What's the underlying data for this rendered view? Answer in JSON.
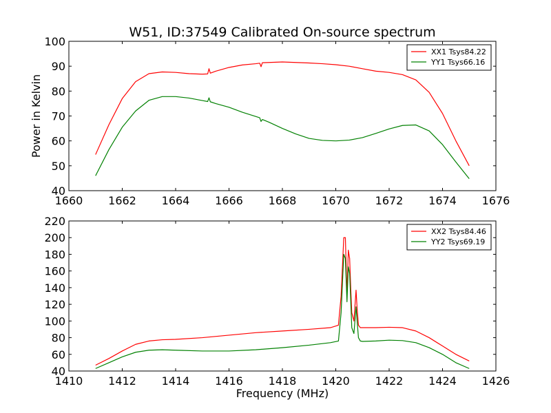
{
  "title": "W51, ID:37549 Calibrated On-source spectrum",
  "chart_data": [
    {
      "type": "line",
      "ylabel": "Power in Kelvin",
      "xlabel": "",
      "xlim": [
        1660,
        1676
      ],
      "ylim": [
        40,
        100
      ],
      "xticks": [
        "1660",
        "1662",
        "1664",
        "1666",
        "1668",
        "1670",
        "1672",
        "1674",
        "1676"
      ],
      "yticks": [
        "40",
        "50",
        "60",
        "70",
        "80",
        "90",
        "100"
      ],
      "legend_position": "top-right",
      "series": [
        {
          "name": "XX1 Tsys84.22",
          "color": "#ff0000",
          "x": [
            1661.0,
            1661.5,
            1662.0,
            1662.5,
            1663.0,
            1663.5,
            1664.0,
            1664.5,
            1665.0,
            1665.2,
            1665.25,
            1665.3,
            1665.5,
            1666.0,
            1666.5,
            1667.0,
            1667.15,
            1667.2,
            1667.25,
            1667.5,
            1668.0,
            1668.5,
            1669.0,
            1669.5,
            1670.0,
            1670.5,
            1671.0,
            1671.5,
            1672.0,
            1672.5,
            1673.0,
            1673.5,
            1674.0,
            1674.5,
            1675.0
          ],
          "y": [
            54.5,
            66.5,
            77.0,
            83.8,
            87.0,
            87.7,
            87.5,
            87.0,
            86.8,
            86.9,
            89.0,
            87.2,
            88.0,
            89.5,
            90.5,
            91.0,
            91.2,
            89.8,
            91.4,
            91.5,
            91.7,
            91.5,
            91.3,
            91.0,
            90.6,
            90.0,
            89.0,
            88.0,
            87.5,
            86.6,
            84.5,
            79.5,
            71.0,
            60.0,
            50.0
          ]
        },
        {
          "name": "YY1 Tsys66.16",
          "color": "#008000",
          "x": [
            1661.0,
            1661.5,
            1662.0,
            1662.5,
            1663.0,
            1663.5,
            1664.0,
            1664.5,
            1665.0,
            1665.2,
            1665.25,
            1665.3,
            1665.5,
            1666.0,
            1666.5,
            1667.0,
            1667.15,
            1667.2,
            1667.25,
            1667.5,
            1668.0,
            1668.5,
            1669.0,
            1669.5,
            1670.0,
            1670.5,
            1671.0,
            1671.5,
            1672.0,
            1672.5,
            1673.0,
            1673.5,
            1674.0,
            1674.5,
            1675.0
          ],
          "y": [
            46.0,
            56.5,
            65.5,
            72.0,
            76.3,
            77.8,
            77.8,
            77.2,
            76.2,
            75.8,
            77.3,
            75.7,
            75.0,
            73.5,
            71.5,
            69.8,
            69.3,
            67.8,
            68.6,
            67.5,
            65.0,
            62.8,
            61.0,
            60.2,
            60.0,
            60.3,
            61.3,
            63.0,
            64.8,
            66.2,
            66.4,
            64.0,
            58.5,
            51.5,
            44.8
          ]
        }
      ]
    },
    {
      "type": "line",
      "ylabel": "",
      "xlabel": "Frequency (MHz)",
      "xlim": [
        1410,
        1426
      ],
      "ylim": [
        40,
        220
      ],
      "xticks": [
        "1410",
        "1412",
        "1414",
        "1416",
        "1418",
        "1420",
        "1422",
        "1424",
        "1426"
      ],
      "yticks": [
        "40",
        "60",
        "80",
        "100",
        "120",
        "140",
        "160",
        "180",
        "200",
        "220"
      ],
      "legend_position": "top-right",
      "series": [
        {
          "name": "XX2 Tsys84.46",
          "color": "#ff0000",
          "x": [
            1411.0,
            1411.5,
            1412.0,
            1412.5,
            1413.0,
            1413.5,
            1414.0,
            1415.0,
            1416.0,
            1417.0,
            1418.0,
            1419.0,
            1419.8,
            1420.1,
            1420.2,
            1420.3,
            1420.36,
            1420.42,
            1420.47,
            1420.52,
            1420.56,
            1420.6,
            1420.68,
            1420.76,
            1420.8,
            1420.85,
            1420.92,
            1421.0,
            1421.5,
            1422.0,
            1422.5,
            1423.0,
            1423.5,
            1424.0,
            1424.5,
            1425.0
          ],
          "y": [
            47.0,
            55.0,
            64.0,
            72.0,
            76.0,
            77.5,
            78.0,
            80.0,
            83.0,
            86.0,
            88.0,
            90.0,
            92.0,
            95.0,
            130.0,
            200.0,
            200.0,
            130.0,
            185.0,
            175.0,
            140.0,
            110.0,
            100.0,
            137.0,
            115.0,
            95.0,
            92.0,
            92.0,
            92.0,
            92.5,
            92.0,
            88.0,
            80.0,
            70.0,
            60.0,
            52.0
          ]
        },
        {
          "name": "YY2 Tsys69.19",
          "color": "#008000",
          "x": [
            1411.0,
            1411.5,
            1412.0,
            1412.5,
            1413.0,
            1413.5,
            1414.0,
            1415.0,
            1416.0,
            1417.0,
            1418.0,
            1419.0,
            1419.8,
            1420.1,
            1420.2,
            1420.3,
            1420.36,
            1420.42,
            1420.47,
            1420.52,
            1420.56,
            1420.6,
            1420.68,
            1420.76,
            1420.8,
            1420.85,
            1420.92,
            1421.0,
            1421.5,
            1422.0,
            1422.5,
            1423.0,
            1423.5,
            1424.0,
            1424.5,
            1425.0
          ],
          "y": [
            43.0,
            50.0,
            57.0,
            62.5,
            65.0,
            65.5,
            65.0,
            64.0,
            64.0,
            65.5,
            68.0,
            71.0,
            74.0,
            76.0,
            110.0,
            180.0,
            175.0,
            123.0,
            165.0,
            157.0,
            125.0,
            92.0,
            85.0,
            117.0,
            100.0,
            80.0,
            76.0,
            75.5,
            76.0,
            77.0,
            76.5,
            74.0,
            68.0,
            60.0,
            50.0,
            43.0
          ]
        }
      ]
    }
  ]
}
